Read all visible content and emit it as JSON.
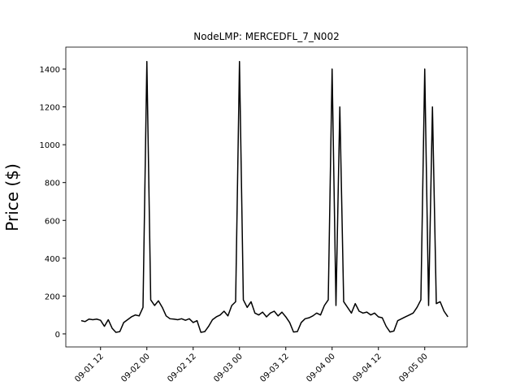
{
  "chart_data": {
    "type": "line",
    "title": "NodeLMP: MERCEDFL_7_N002",
    "y_label": "Price ($)",
    "x": [
      "09-01 07",
      "09-01 08",
      "09-01 09",
      "09-01 10",
      "09-01 11",
      "09-01 12",
      "09-01 13",
      "09-01 14",
      "09-01 15",
      "09-01 16",
      "09-01 17",
      "09-01 18",
      "09-01 19",
      "09-01 20",
      "09-01 21",
      "09-01 22",
      "09-01 23",
      "09-02 00",
      "09-02 01",
      "09-02 02",
      "09-02 03",
      "09-02 04",
      "09-02 05",
      "09-02 06",
      "09-02 07",
      "09-02 08",
      "09-02 09",
      "09-02 10",
      "09-02 11",
      "09-02 12",
      "09-02 13",
      "09-02 14",
      "09-02 15",
      "09-02 16",
      "09-02 17",
      "09-02 18",
      "09-02 19",
      "09-02 20",
      "09-02 21",
      "09-02 22",
      "09-02 23",
      "09-03 00",
      "09-03 01",
      "09-03 02",
      "09-03 03",
      "09-03 04",
      "09-03 05",
      "09-03 06",
      "09-03 07",
      "09-03 08",
      "09-03 09",
      "09-03 10",
      "09-03 11",
      "09-03 12",
      "09-03 13",
      "09-03 14",
      "09-03 15",
      "09-03 16",
      "09-03 17",
      "09-03 18",
      "09-03 19",
      "09-03 20",
      "09-03 21",
      "09-03 22",
      "09-03 23",
      "09-04 00",
      "09-04 01",
      "09-04 02",
      "09-04 03",
      "09-04 04",
      "09-04 05",
      "09-04 06",
      "09-04 07",
      "09-04 08",
      "09-04 09",
      "09-04 10",
      "09-04 11",
      "09-04 12",
      "09-04 13",
      "09-04 14",
      "09-04 15",
      "09-04 16",
      "09-04 17",
      "09-04 18",
      "09-04 19",
      "09-04 20",
      "09-04 21",
      "09-04 22",
      "09-04 23",
      "09-05 00",
      "09-05 01",
      "09-05 02",
      "09-05 03",
      "09-05 04",
      "09-05 05",
      "09-05 06"
    ],
    "series": [
      {
        "color": "#000000",
        "values": [
          70,
          65,
          78,
          75,
          78,
          72,
          40,
          75,
          30,
          8,
          12,
          60,
          75,
          90,
          100,
          95,
          140,
          1440,
          180,
          150,
          175,
          140,
          95,
          80,
          78,
          75,
          80,
          72,
          80,
          60,
          70,
          8,
          12,
          40,
          75,
          90,
          100,
          120,
          95,
          150,
          170,
          1440,
          180,
          140,
          170,
          110,
          100,
          115,
          90,
          110,
          120,
          95,
          115,
          90,
          60,
          10,
          12,
          60,
          80,
          85,
          95,
          110,
          100,
          150,
          180,
          1400,
          150,
          1200,
          170,
          140,
          110,
          160,
          120,
          110,
          115,
          100,
          110,
          90,
          85,
          40,
          10,
          15,
          70,
          80,
          90,
          100,
          110,
          140,
          180,
          1400,
          150,
          1200,
          160,
          170,
          120,
          90
        ]
      }
    ],
    "xlim": [
      "09-01 03",
      "09-05 11"
    ],
    "xticks": [
      "09-01 12",
      "09-02 00",
      "09-02 12",
      "09-03 00",
      "09-03 12",
      "09-04 00",
      "09-04 12",
      "09-05 00"
    ],
    "ylim": [
      -69,
      1516
    ],
    "yticks": [
      0,
      200,
      400,
      600,
      800,
      1000,
      1200,
      1400
    ]
  }
}
